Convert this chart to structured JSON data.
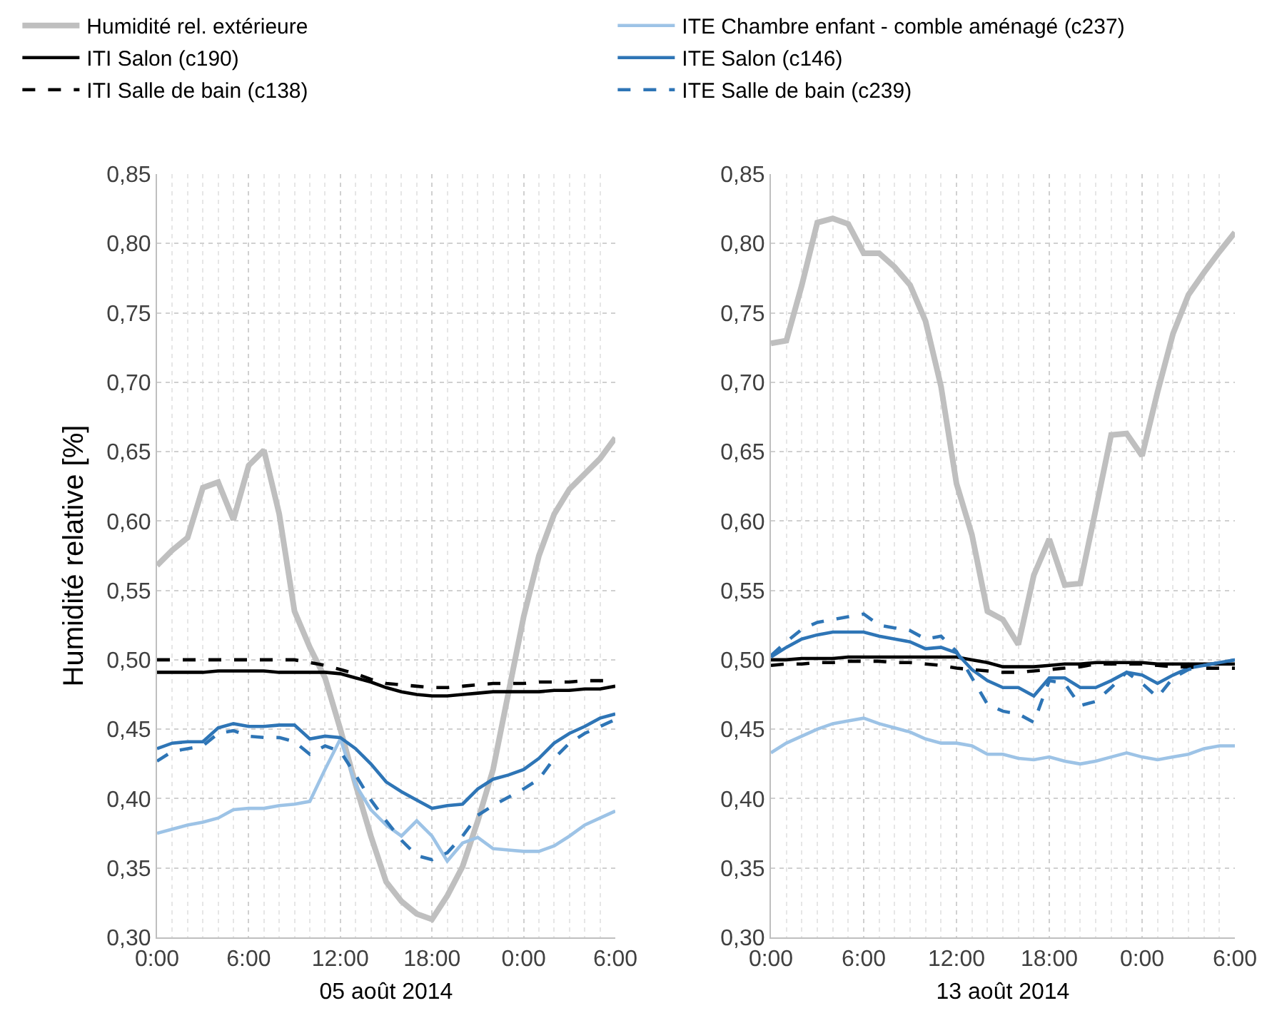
{
  "chart_data": [
    {
      "type": "line",
      "xlabel": "05 août 2014",
      "ylabel": "Humidité relative [%]",
      "legend": "top",
      "grid": true,
      "x": [
        "2014-08-05T00:00",
        "2014-08-05T01:00",
        "2014-08-05T02:00",
        "2014-08-05T03:00",
        "2014-08-05T04:00",
        "2014-08-05T05:00",
        "2014-08-05T06:00",
        "2014-08-05T07:00",
        "2014-08-05T08:00",
        "2014-08-05T09:00",
        "2014-08-05T10:00",
        "2014-08-05T11:00",
        "2014-08-05T12:00",
        "2014-08-05T13:00",
        "2014-08-05T14:00",
        "2014-08-05T15:00",
        "2014-08-05T16:00",
        "2014-08-05T17:00",
        "2014-08-05T18:00",
        "2014-08-05T19:00",
        "2014-08-05T20:00",
        "2014-08-05T21:00",
        "2014-08-05T22:00",
        "2014-08-05T23:00",
        "2014-08-06T00:00",
        "2014-08-06T01:00",
        "2014-08-06T02:00",
        "2014-08-06T03:00",
        "2014-08-06T04:00",
        "2014-08-06T05:00",
        "2014-08-06T06:00"
      ],
      "xlim": [
        "2014-08-05T00:00",
        "2014-08-06T06:00"
      ],
      "xticks": [
        {
          "value": "2014-08-05T00:00",
          "label": "0:00"
        },
        {
          "value": "2014-08-05T06:00",
          "label": "6:00"
        },
        {
          "value": "2014-08-05T12:00",
          "label": "12:00"
        },
        {
          "value": "2014-08-05T18:00",
          "label": "18:00"
        },
        {
          "value": "2014-08-06T00:00",
          "label": "0:00"
        },
        {
          "value": "2014-08-06T06:00",
          "label": "6:00"
        }
      ],
      "ylim": [
        0.3,
        0.85
      ],
      "yticks": [
        {
          "value": 0.3,
          "label": "0,30"
        },
        {
          "value": 0.35,
          "label": "0,35"
        },
        {
          "value": 0.4,
          "label": "0,40"
        },
        {
          "value": 0.45,
          "label": "0,45"
        },
        {
          "value": 0.5,
          "label": "0,50"
        },
        {
          "value": 0.55,
          "label": "0,55"
        },
        {
          "value": 0.6,
          "label": "0,60"
        },
        {
          "value": 0.65,
          "label": "0,65"
        },
        {
          "value": 0.7,
          "label": "0,70"
        },
        {
          "value": 0.75,
          "label": "0,75"
        },
        {
          "value": 0.8,
          "label": "0,80"
        },
        {
          "value": 0.85,
          "label": "0,85"
        }
      ],
      "series": [
        {
          "name": "Humidité rel. extérieure",
          "color": "#bfbfbf",
          "line_style": "solid",
          "values": [
            0.568,
            0.579,
            0.588,
            0.624,
            0.628,
            0.601,
            0.64,
            0.651,
            0.605,
            0.535,
            0.509,
            0.487,
            0.45,
            0.41,
            0.373,
            0.34,
            0.326,
            0.317,
            0.313,
            0.33,
            0.351,
            0.384,
            0.421,
            0.476,
            0.531,
            0.575,
            0.605,
            0.623,
            0.634,
            0.645,
            0.66
          ]
        },
        {
          "name": "ITE Chambre enfant - comble aménagé (c237)",
          "color": "#9dc3e6",
          "line_style": "solid",
          "values": [
            0.375,
            0.378,
            0.381,
            0.383,
            0.386,
            0.392,
            0.393,
            0.393,
            0.395,
            0.396,
            0.398,
            0.421,
            0.443,
            0.41,
            0.392,
            0.381,
            0.373,
            0.384,
            0.373,
            0.355,
            0.368,
            0.372,
            0.364,
            0.363,
            0.362,
            0.362,
            0.366,
            0.373,
            0.381,
            0.386,
            0.391
          ]
        },
        {
          "name": "ITI Salon (c190)",
          "color": "#000000",
          "line_style": "solid",
          "values": [
            0.491,
            0.491,
            0.491,
            0.491,
            0.492,
            0.492,
            0.492,
            0.492,
            0.491,
            0.491,
            0.491,
            0.491,
            0.49,
            0.487,
            0.484,
            0.48,
            0.477,
            0.475,
            0.474,
            0.474,
            0.475,
            0.476,
            0.477,
            0.477,
            0.477,
            0.477,
            0.478,
            0.478,
            0.479,
            0.479,
            0.481
          ]
        },
        {
          "name": "ITE Salon (c146)",
          "color": "#2e75b6",
          "line_style": "solid",
          "values": [
            0.436,
            0.44,
            0.441,
            0.441,
            0.451,
            0.454,
            0.452,
            0.452,
            0.453,
            0.453,
            0.443,
            0.445,
            0.444,
            0.436,
            0.425,
            0.412,
            0.405,
            0.399,
            0.393,
            0.395,
            0.396,
            0.407,
            0.414,
            0.417,
            0.421,
            0.429,
            0.44,
            0.447,
            0.452,
            0.458,
            0.461
          ]
        },
        {
          "name": "ITI Salle de bain (c138)",
          "color": "#000000",
          "line_style": "dashed",
          "values": [
            0.5,
            0.5,
            0.5,
            0.5,
            0.5,
            0.5,
            0.5,
            0.5,
            0.5,
            0.5,
            0.498,
            0.496,
            0.493,
            0.49,
            0.486,
            0.483,
            0.482,
            0.481,
            0.48,
            0.48,
            0.481,
            0.482,
            0.483,
            0.483,
            0.483,
            0.484,
            0.484,
            0.484,
            0.485,
            0.485,
            0.485
          ]
        },
        {
          "name": "ITE Salle de bain (c239)",
          "color": "#2e75b6",
          "line_style": "dashed",
          "values": [
            0.427,
            0.434,
            0.436,
            0.438,
            0.447,
            0.449,
            0.445,
            0.444,
            0.444,
            0.441,
            0.432,
            0.438,
            0.434,
            0.417,
            0.399,
            0.384,
            0.37,
            0.359,
            0.356,
            0.361,
            0.373,
            0.388,
            0.395,
            0.401,
            0.407,
            0.414,
            0.429,
            0.44,
            0.447,
            0.452,
            0.457
          ]
        }
      ]
    },
    {
      "type": "line",
      "xlabel": "13 août 2014",
      "legend": false,
      "grid": true,
      "x": [
        "2014-08-13T00:00",
        "2014-08-13T01:00",
        "2014-08-13T02:00",
        "2014-08-13T03:00",
        "2014-08-13T04:00",
        "2014-08-13T05:00",
        "2014-08-13T06:00",
        "2014-08-13T07:00",
        "2014-08-13T08:00",
        "2014-08-13T09:00",
        "2014-08-13T10:00",
        "2014-08-13T11:00",
        "2014-08-13T12:00",
        "2014-08-13T13:00",
        "2014-08-13T14:00",
        "2014-08-13T15:00",
        "2014-08-13T16:00",
        "2014-08-13T17:00",
        "2014-08-13T18:00",
        "2014-08-13T19:00",
        "2014-08-13T20:00",
        "2014-08-13T21:00",
        "2014-08-13T22:00",
        "2014-08-13T23:00",
        "2014-08-14T00:00",
        "2014-08-14T01:00",
        "2014-08-14T02:00",
        "2014-08-14T03:00",
        "2014-08-14T04:00",
        "2014-08-14T05:00",
        "2014-08-14T06:00"
      ],
      "xlim": [
        "2014-08-13T00:00",
        "2014-08-14T06:00"
      ],
      "xticks": [
        {
          "value": "2014-08-13T00:00",
          "label": "0:00"
        },
        {
          "value": "2014-08-13T06:00",
          "label": "6:00"
        },
        {
          "value": "2014-08-13T12:00",
          "label": "12:00"
        },
        {
          "value": "2014-08-13T18:00",
          "label": "18:00"
        },
        {
          "value": "2014-08-14T00:00",
          "label": "0:00"
        },
        {
          "value": "2014-08-14T06:00",
          "label": "6:00"
        }
      ],
      "ylim": [
        0.3,
        0.85
      ],
      "yticks": [
        {
          "value": 0.3,
          "label": "0,30"
        },
        {
          "value": 0.35,
          "label": "0,35"
        },
        {
          "value": 0.4,
          "label": "0,40"
        },
        {
          "value": 0.45,
          "label": "0,45"
        },
        {
          "value": 0.5,
          "label": "0,50"
        },
        {
          "value": 0.55,
          "label": "0,55"
        },
        {
          "value": 0.6,
          "label": "0,60"
        },
        {
          "value": 0.65,
          "label": "0,65"
        },
        {
          "value": 0.7,
          "label": "0,70"
        },
        {
          "value": 0.75,
          "label": "0,75"
        },
        {
          "value": 0.8,
          "label": "0,80"
        },
        {
          "value": 0.85,
          "label": "0,85"
        }
      ],
      "series": [
        {
          "color": "#bfbfbf",
          "line_style": "solid",
          "values": [
            0.728,
            0.73,
            0.77,
            0.815,
            0.818,
            0.814,
            0.793,
            0.793,
            0.783,
            0.77,
            0.744,
            0.697,
            0.627,
            0.59,
            0.535,
            0.529,
            0.511,
            0.561,
            0.587,
            0.554,
            0.555,
            0.608,
            0.662,
            0.663,
            0.647,
            0.693,
            0.735,
            0.763,
            0.779,
            0.794,
            0.808
          ]
        },
        {
          "color": "#9dc3e6",
          "line_style": "solid",
          "values": [
            0.433,
            0.44,
            0.445,
            0.45,
            0.454,
            0.456,
            0.458,
            0.454,
            0.451,
            0.448,
            0.443,
            0.44,
            0.44,
            0.438,
            0.432,
            0.432,
            0.429,
            0.428,
            0.43,
            0.427,
            0.425,
            0.427,
            0.43,
            0.433,
            0.43,
            0.428,
            0.43,
            0.432,
            0.436,
            0.438,
            0.438
          ]
        },
        {
          "color": "#000000",
          "line_style": "solid",
          "values": [
            0.5,
            0.5,
            0.501,
            0.501,
            0.501,
            0.502,
            0.502,
            0.502,
            0.502,
            0.502,
            0.502,
            0.502,
            0.502,
            0.5,
            0.498,
            0.495,
            0.495,
            0.495,
            0.496,
            0.497,
            0.497,
            0.498,
            0.498,
            0.498,
            0.498,
            0.497,
            0.497,
            0.497,
            0.497,
            0.497,
            0.497
          ]
        },
        {
          "color": "#2e75b6",
          "line_style": "solid",
          "values": [
            0.502,
            0.509,
            0.515,
            0.518,
            0.52,
            0.52,
            0.52,
            0.517,
            0.515,
            0.513,
            0.508,
            0.509,
            0.505,
            0.493,
            0.485,
            0.48,
            0.48,
            0.474,
            0.487,
            0.487,
            0.48,
            0.48,
            0.485,
            0.491,
            0.489,
            0.483,
            0.489,
            0.494,
            0.496,
            0.498,
            0.5
          ]
        },
        {
          "color": "#000000",
          "line_style": "dashed",
          "values": [
            0.496,
            0.497,
            0.497,
            0.498,
            0.498,
            0.499,
            0.499,
            0.499,
            0.498,
            0.498,
            0.497,
            0.496,
            0.494,
            0.493,
            0.492,
            0.491,
            0.491,
            0.492,
            0.493,
            0.494,
            0.495,
            0.497,
            0.497,
            0.497,
            0.497,
            0.496,
            0.495,
            0.495,
            0.494,
            0.494,
            0.494
          ]
        },
        {
          "color": "#2e75b6",
          "line_style": "dashed",
          "values": [
            0.503,
            0.513,
            0.522,
            0.527,
            0.529,
            0.531,
            0.533,
            0.525,
            0.523,
            0.521,
            0.515,
            0.517,
            0.506,
            0.487,
            0.468,
            0.463,
            0.461,
            0.455,
            0.485,
            0.483,
            0.467,
            0.47,
            0.48,
            0.491,
            0.483,
            0.473,
            0.487,
            0.493,
            0.496,
            0.498,
            0.5
          ]
        }
      ]
    }
  ]
}
